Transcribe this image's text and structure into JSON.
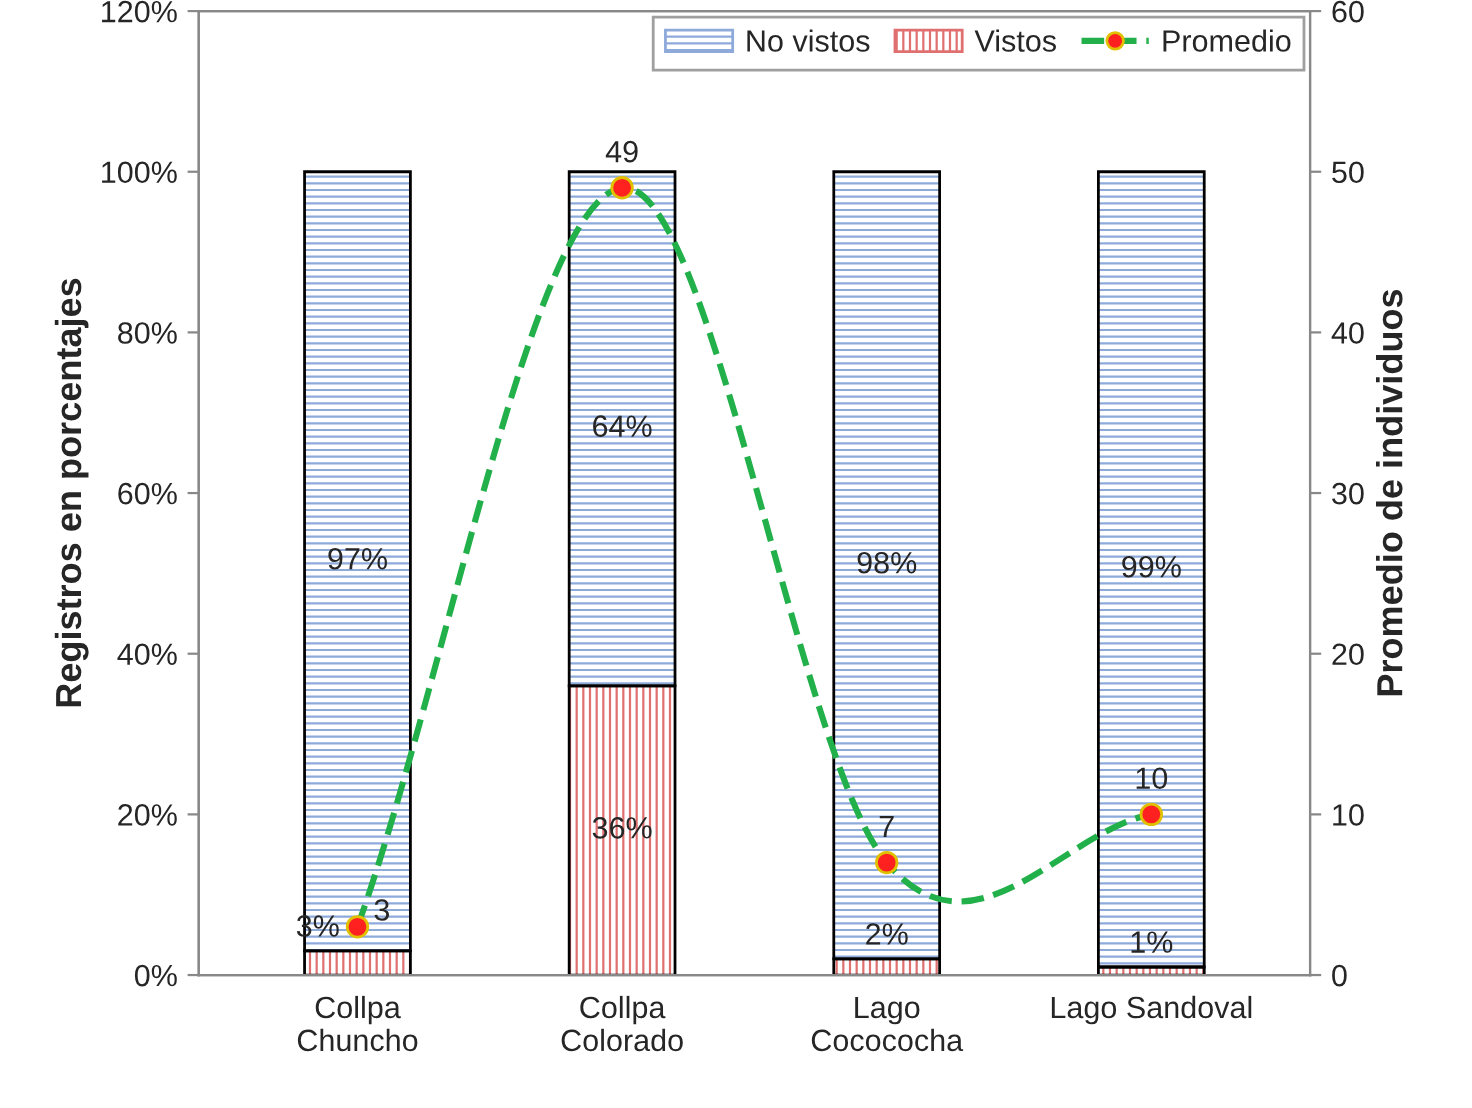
{
  "chart_data": {
    "type": "bar",
    "stacked": true,
    "categories": [
      "Collpa\nChuncho",
      "Collpa\nColorado",
      "Lago\nCocococha",
      "Lago Sandoval"
    ],
    "ylabel": "Registros en porcentajes",
    "y2label": "Promedio de individuos",
    "ylim": [
      0,
      120
    ],
    "yticks": [
      {
        "value": 0,
        "label": "0%"
      },
      {
        "value": 20,
        "label": "20%"
      },
      {
        "value": 40,
        "label": "40%"
      },
      {
        "value": 60,
        "label": "60%"
      },
      {
        "value": 80,
        "label": "80%"
      },
      {
        "value": 100,
        "label": "100%"
      },
      {
        "value": 120,
        "label": "120%"
      }
    ],
    "y2lim": [
      0,
      60
    ],
    "y2ticks": [
      0,
      10,
      20,
      30,
      40,
      50,
      60
    ],
    "series": [
      {
        "name": "Vistos",
        "color": "#e07070",
        "values": [
          3,
          36,
          2,
          1
        ],
        "value_labels": [
          "3%",
          "36%",
          "2%",
          "1%"
        ]
      },
      {
        "name": "No vistos",
        "color": "#8eaadb",
        "values": [
          97,
          64,
          98,
          99
        ],
        "value_labels": [
          "97%",
          "64%",
          "98%",
          "99%"
        ]
      },
      {
        "name": "Promedio",
        "type": "line",
        "axis": "y2",
        "color": "#22b04a",
        "line_style": "dashed",
        "marker": "circle",
        "values": [
          3,
          49,
          7,
          10
        ],
        "value_labels": [
          "3",
          "49",
          "7",
          "10"
        ]
      }
    ],
    "legend": "top right",
    "grid": false
  }
}
